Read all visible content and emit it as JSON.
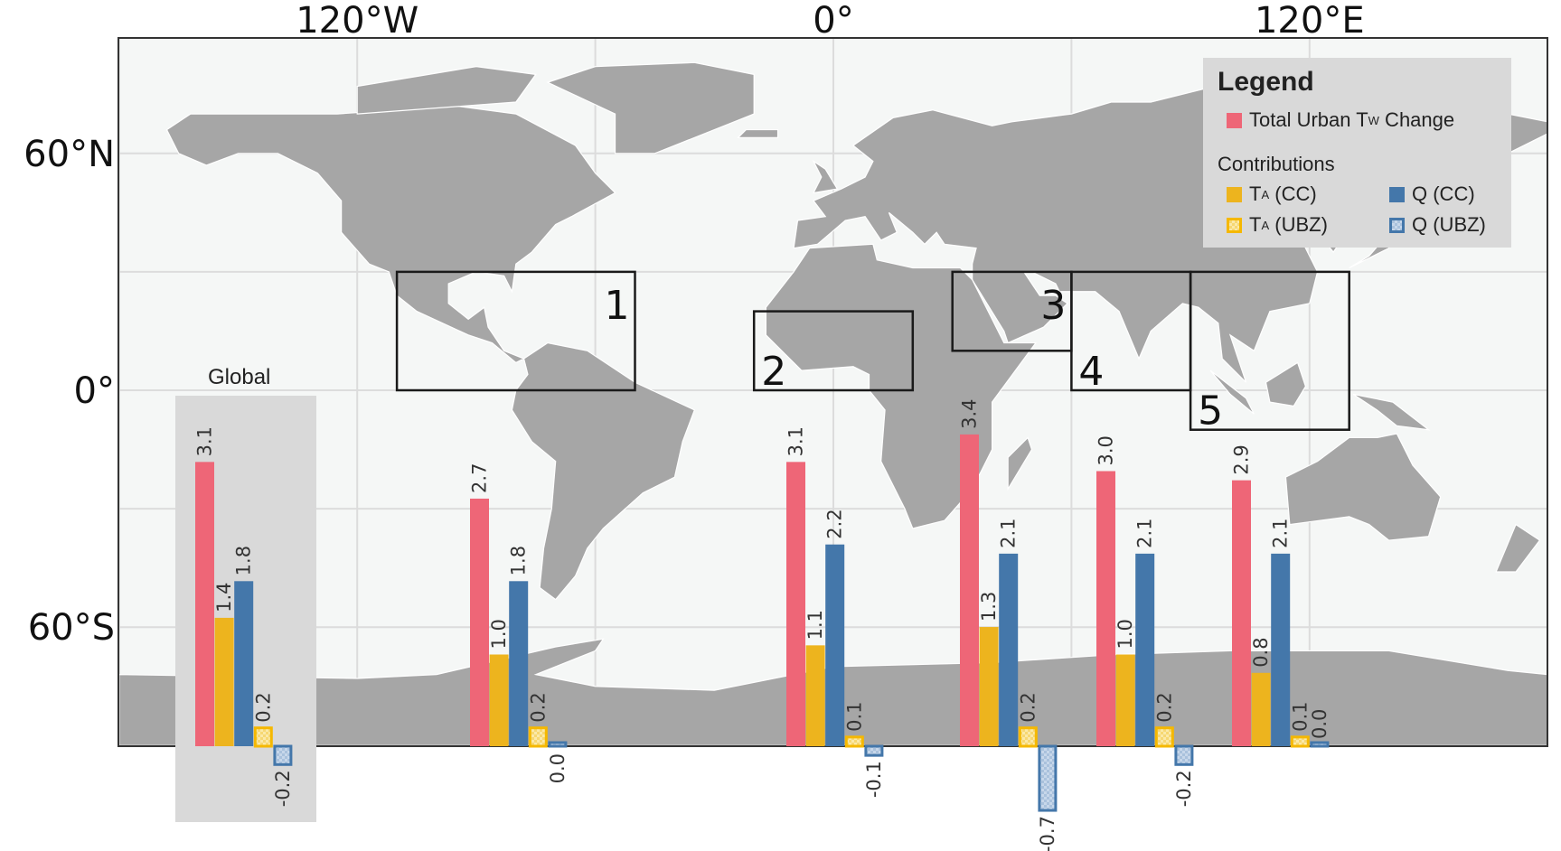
{
  "chart_data": {
    "type": "bar",
    "categories": [
      "Global",
      "1",
      "2",
      "3",
      "4",
      "5"
    ],
    "series": [
      {
        "name": "Total Urban TW Change",
        "key": "total",
        "color": "#ee6677",
        "values": [
          3.1,
          2.7,
          3.1,
          3.4,
          3.0,
          2.9
        ]
      },
      {
        "name": "TA (CC)",
        "key": "ta_cc",
        "color": "#edb41e",
        "values": [
          1.4,
          1.0,
          1.1,
          1.3,
          1.0,
          0.8
        ]
      },
      {
        "name": "Q (CC)",
        "key": "q_cc",
        "color": "#4477aa",
        "values": [
          1.8,
          1.8,
          2.2,
          2.1,
          2.1,
          2.1
        ]
      },
      {
        "name": "TA (UBZ)",
        "key": "ta_ubz",
        "color": "#f5b800",
        "hatched": true,
        "values": [
          0.2,
          0.2,
          0.1,
          0.2,
          0.2,
          0.1
        ]
      },
      {
        "name": "Q (UBZ)",
        "key": "q_ubz",
        "color": "#4477aa",
        "hatched": true,
        "values": [
          -0.2,
          0.0,
          -0.1,
          -0.7,
          -0.2,
          0.0
        ]
      }
    ],
    "global_label": "Global",
    "map": {
      "x_ticks": [
        {
          "lon": -120,
          "label": "120°W"
        },
        {
          "lon": 0,
          "label": "0°"
        },
        {
          "lon": 120,
          "label": "120°E"
        }
      ],
      "y_ticks": [
        {
          "lat": 60,
          "label": "60°N"
        },
        {
          "lat": 0,
          "label": "0°"
        },
        {
          "lat": -60,
          "label": "60°S"
        }
      ],
      "grid": true,
      "land_color": "#a6a6a6",
      "ocean_color": "#f5f7f6",
      "regions": [
        {
          "label": "1",
          "lon": [
            -110,
            -50
          ],
          "lat": [
            0,
            30
          ]
        },
        {
          "label": "2",
          "lon": [
            -20,
            20
          ],
          "lat": [
            0,
            20
          ]
        },
        {
          "label": "3",
          "lon": [
            30,
            60
          ],
          "lat": [
            10,
            30
          ]
        },
        {
          "label": "4",
          "lon": [
            60,
            90
          ],
          "lat": [
            0,
            30
          ]
        },
        {
          "label": "5",
          "lon": [
            90,
            130
          ],
          "lat": [
            -10,
            30
          ]
        }
      ]
    }
  },
  "legend": {
    "title": "Legend",
    "total_prefix": "Total Urban T",
    "total_sub": "W",
    "total_suffix": " Change",
    "contributions": "Contributions",
    "ta_prefix": "T",
    "ta_sub": "A",
    "cc": " (CC)",
    "ubz": " (UBZ)",
    "q_cc": "Q (CC)",
    "q_ubz": "Q (UBZ)"
  }
}
